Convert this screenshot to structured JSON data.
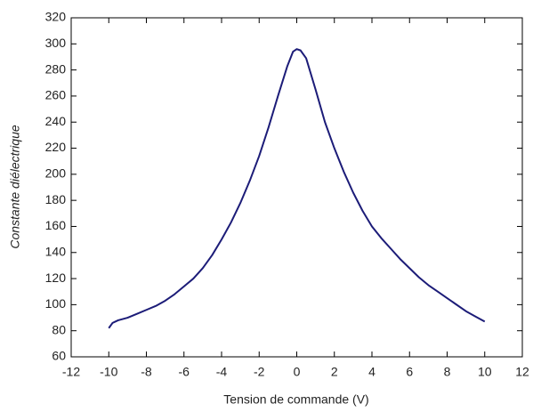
{
  "chart_data": {
    "type": "line",
    "xlabel": "Tension de commande (V)",
    "ylabel": "Constante diélectrique",
    "x": [
      -10,
      -9.8,
      -9.5,
      -9,
      -8.5,
      -8,
      -7.5,
      -7,
      -6.5,
      -6,
      -5.5,
      -5,
      -4.5,
      -4,
      -3.5,
      -3,
      -2.5,
      -2,
      -1.5,
      -1,
      -0.5,
      -0.2,
      0,
      0.2,
      0.5,
      1,
      1.5,
      2,
      2.5,
      3,
      3.5,
      4,
      4.5,
      5,
      5.5,
      6,
      6.5,
      7,
      7.5,
      8,
      8.5,
      9,
      9.5,
      10
    ],
    "series": [
      {
        "color": "#1c1c78",
        "values": [
          82,
          86,
          88,
          90,
          93,
          96,
          99,
          103,
          108,
          114,
          120,
          128,
          138,
          150,
          163,
          178,
          195,
          214,
          236,
          260,
          283,
          294,
          296,
          295,
          289,
          265,
          240,
          220,
          202,
          186,
          172,
          160,
          151,
          143,
          135,
          128,
          121,
          115,
          110,
          105,
          100,
          95,
          91,
          87
        ]
      }
    ],
    "xlim": [
      -12,
      12
    ],
    "xticks": [
      -12,
      -10,
      -8,
      -6,
      -4,
      -2,
      0,
      2,
      4,
      6,
      8,
      10,
      12
    ],
    "ylim": [
      60,
      320
    ],
    "yticks": [
      60,
      80,
      100,
      120,
      140,
      160,
      180,
      200,
      220,
      240,
      260,
      280,
      300,
      320
    ],
    "grid": false
  }
}
